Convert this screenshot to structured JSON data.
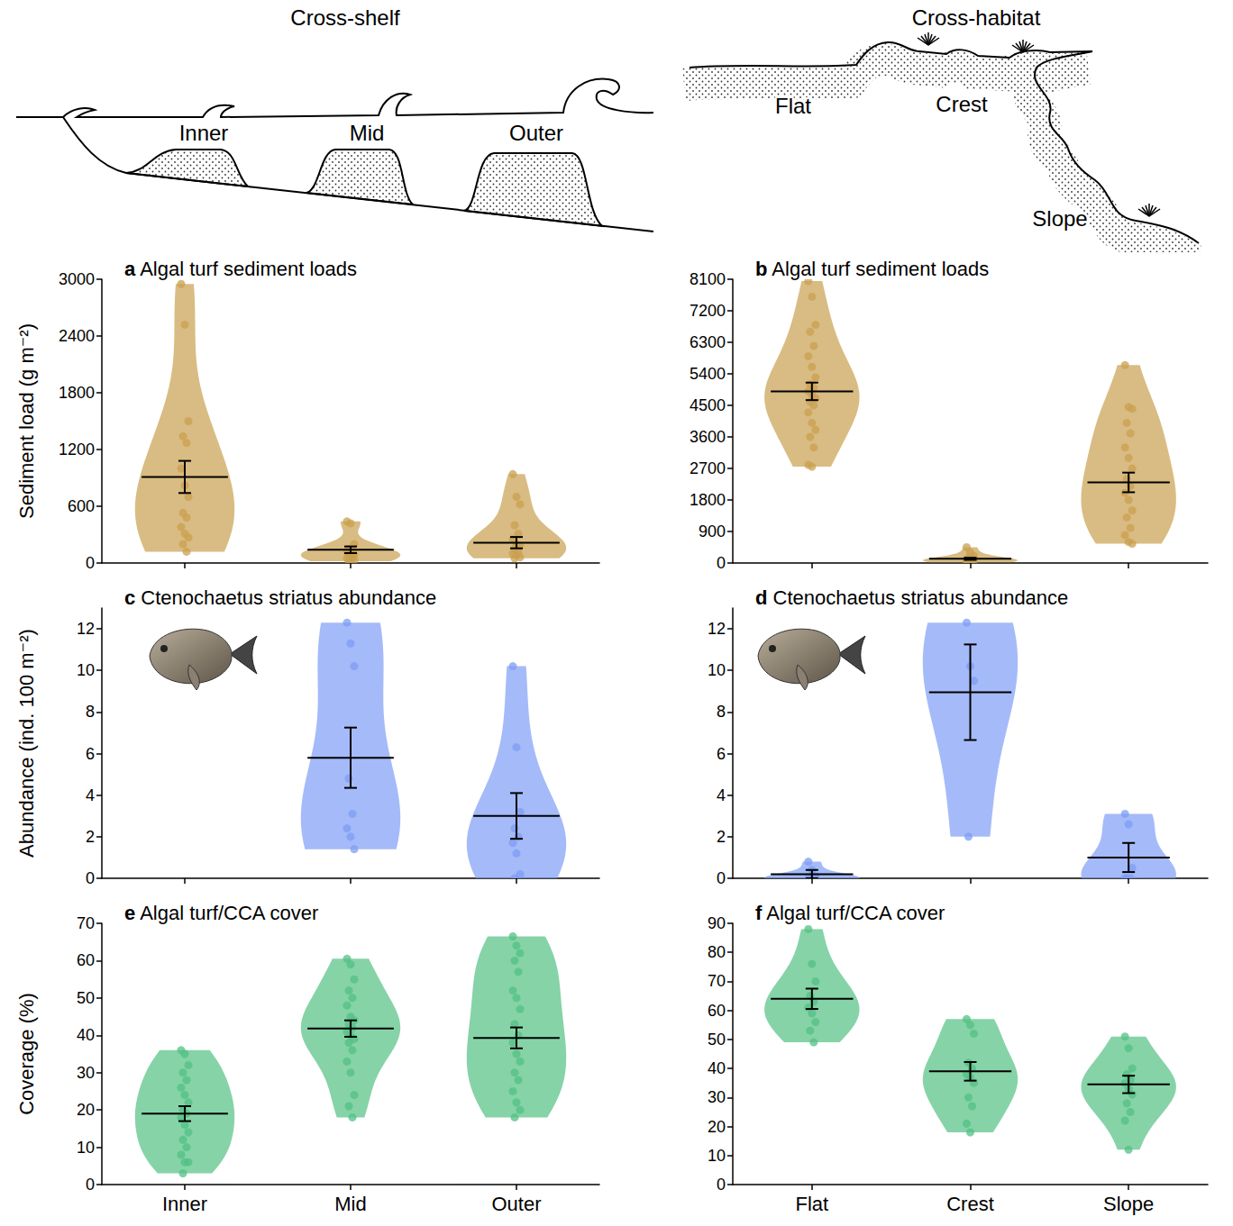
{
  "diagram": {
    "cross_shelf": {
      "title": "Cross-shelf",
      "labels": [
        "Inner",
        "Mid",
        "Outer"
      ]
    },
    "cross_habitat": {
      "title": "Cross-habitat",
      "labels": [
        "Flat",
        "Crest",
        "Slope"
      ]
    }
  },
  "chart_data": [
    {
      "type": "violin",
      "panel": "a",
      "title": "Algal turf sediment loads",
      "y_label": "Sediment load (g m⁻²)",
      "categories": [
        "Inner",
        "Mid",
        "Outer"
      ],
      "ylim": [
        0,
        3000
      ],
      "yticks": [
        0,
        600,
        1200,
        1800,
        2400,
        3000
      ],
      "color": "#c9a04f",
      "tick_labels": "y",
      "values": [
        [
          2950,
          2520,
          1500,
          1340,
          1270,
          1000,
          820,
          700,
          530,
          480,
          380,
          310,
          270,
          200,
          120
        ],
        [
          440,
          420,
          200,
          150,
          130,
          120,
          100,
          90,
          80,
          60,
          50,
          40,
          30,
          20
        ],
        [
          940,
          700,
          620,
          400,
          310,
          250,
          200,
          180,
          150,
          120,
          100,
          80,
          60,
          50
        ]
      ],
      "means": [
        910,
        140,
        215
      ],
      "errors": [
        170,
        35,
        60
      ]
    },
    {
      "type": "violin",
      "panel": "b",
      "title": "Algal turf sediment loads",
      "categories": [
        "Flat",
        "Crest",
        "Slope"
      ],
      "ylim": [
        0,
        8100
      ],
      "yticks": [
        0,
        900,
        1800,
        2700,
        3600,
        4500,
        5400,
        6300,
        7200,
        8100
      ],
      "color": "#c9a04f",
      "tick_labels": "y",
      "values": [
        [
          8050,
          7600,
          6800,
          6600,
          6200,
          5900,
          5600,
          5300,
          5100,
          5000,
          4900,
          4800,
          4700,
          4600,
          4500,
          4300,
          4000,
          3800,
          3600,
          3300,
          2800,
          2750
        ],
        [
          450,
          300,
          200,
          150,
          120,
          100,
          80,
          60,
          50,
          40,
          30,
          20
        ],
        [
          5650,
          4450,
          4400,
          4000,
          3700,
          3300,
          3000,
          2700,
          2400,
          2200,
          2000,
          1800,
          1500,
          1300,
          1000,
          800,
          600,
          550
        ]
      ],
      "means": [
        4900,
        120,
        2300
      ],
      "errors": [
        250,
        30,
        280
      ]
    },
    {
      "type": "violin",
      "panel": "c",
      "title": "Ctenochaetus striatus abundance",
      "y_label": "Abundance (ind. 100 m⁻²)",
      "categories": [
        "Inner",
        "Mid",
        "Outer"
      ],
      "ylim": [
        0,
        13
      ],
      "yticks": [
        0,
        2,
        4,
        6,
        8,
        10,
        12
      ],
      "color": "#7f9cf5",
      "tick_labels": "y",
      "values": [
        [],
        [
          12.3,
          11.3,
          10.2,
          4.8,
          3.1,
          2.4,
          2.0,
          1.4
        ],
        [
          10.2,
          6.3,
          3.2,
          2.4,
          2.0,
          1.7,
          1.2,
          0.2,
          0
        ]
      ],
      "means": [
        null,
        5.8,
        3.0
      ],
      "errors": [
        null,
        1.45,
        1.1
      ]
    },
    {
      "type": "violin",
      "panel": "d",
      "title": "Ctenochaetus striatus abundance",
      "categories": [
        "Flat",
        "Crest",
        "Slope"
      ],
      "ylim": [
        0,
        13
      ],
      "yticks": [
        0,
        2,
        4,
        6,
        8,
        10,
        12
      ],
      "color": "#7f9cf5",
      "tick_labels": "y",
      "values": [
        [
          0.8,
          0.4,
          0.1,
          0,
          0,
          0,
          0,
          0
        ],
        [
          12.3,
          10.2,
          9.5,
          2.0
        ],
        [
          3.1,
          2.6,
          0.5,
          0,
          0,
          0
        ]
      ],
      "means": [
        0.2,
        8.95,
        1.0
      ],
      "errors": [
        0.2,
        2.3,
        0.7
      ]
    },
    {
      "type": "violin",
      "panel": "e",
      "title": "Algal turf/CCA cover",
      "y_label": "Coverage (%)",
      "categories": [
        "Inner",
        "Mid",
        "Outer"
      ],
      "ylim": [
        0,
        70
      ],
      "yticks": [
        0,
        10,
        20,
        30,
        40,
        50,
        60,
        70
      ],
      "color": "#52c083",
      "values": [
        [
          36,
          35,
          32,
          30,
          28,
          26,
          24,
          22,
          20,
          19,
          18,
          16,
          14,
          12,
          10,
          8,
          6,
          6,
          3
        ],
        [
          60.5,
          59,
          55,
          52,
          50,
          48,
          45,
          44,
          43,
          42,
          41,
          40,
          39,
          38,
          36,
          33,
          30,
          24,
          21,
          18
        ],
        [
          66.5,
          64,
          62,
          60,
          57,
          52,
          50,
          47,
          43,
          40,
          38,
          35,
          33,
          30,
          28,
          25,
          22,
          20,
          18
        ]
      ],
      "means": [
        19,
        41.8,
        39.3
      ],
      "errors": [
        2,
        2.2,
        2.8
      ]
    },
    {
      "type": "violin",
      "panel": "f",
      "title": "Algal turf/CCA cover",
      "categories": [
        "Flat",
        "Crest",
        "Slope"
      ],
      "ylim": [
        0,
        90
      ],
      "yticks": [
        0,
        10,
        20,
        30,
        40,
        50,
        60,
        70,
        80,
        90
      ],
      "color": "#52c083",
      "values": [
        [
          88,
          76,
          70,
          65,
          63,
          61,
          59,
          56,
          53,
          49
        ],
        [
          57,
          55,
          52,
          42,
          40,
          38,
          37,
          35,
          30,
          27,
          21,
          18
        ],
        [
          51,
          47,
          40,
          38,
          36,
          35,
          33,
          31,
          28,
          25,
          22,
          12
        ]
      ],
      "means": [
        64,
        39,
        34.5
      ],
      "errors": [
        3.5,
        3.2,
        3
      ]
    }
  ]
}
